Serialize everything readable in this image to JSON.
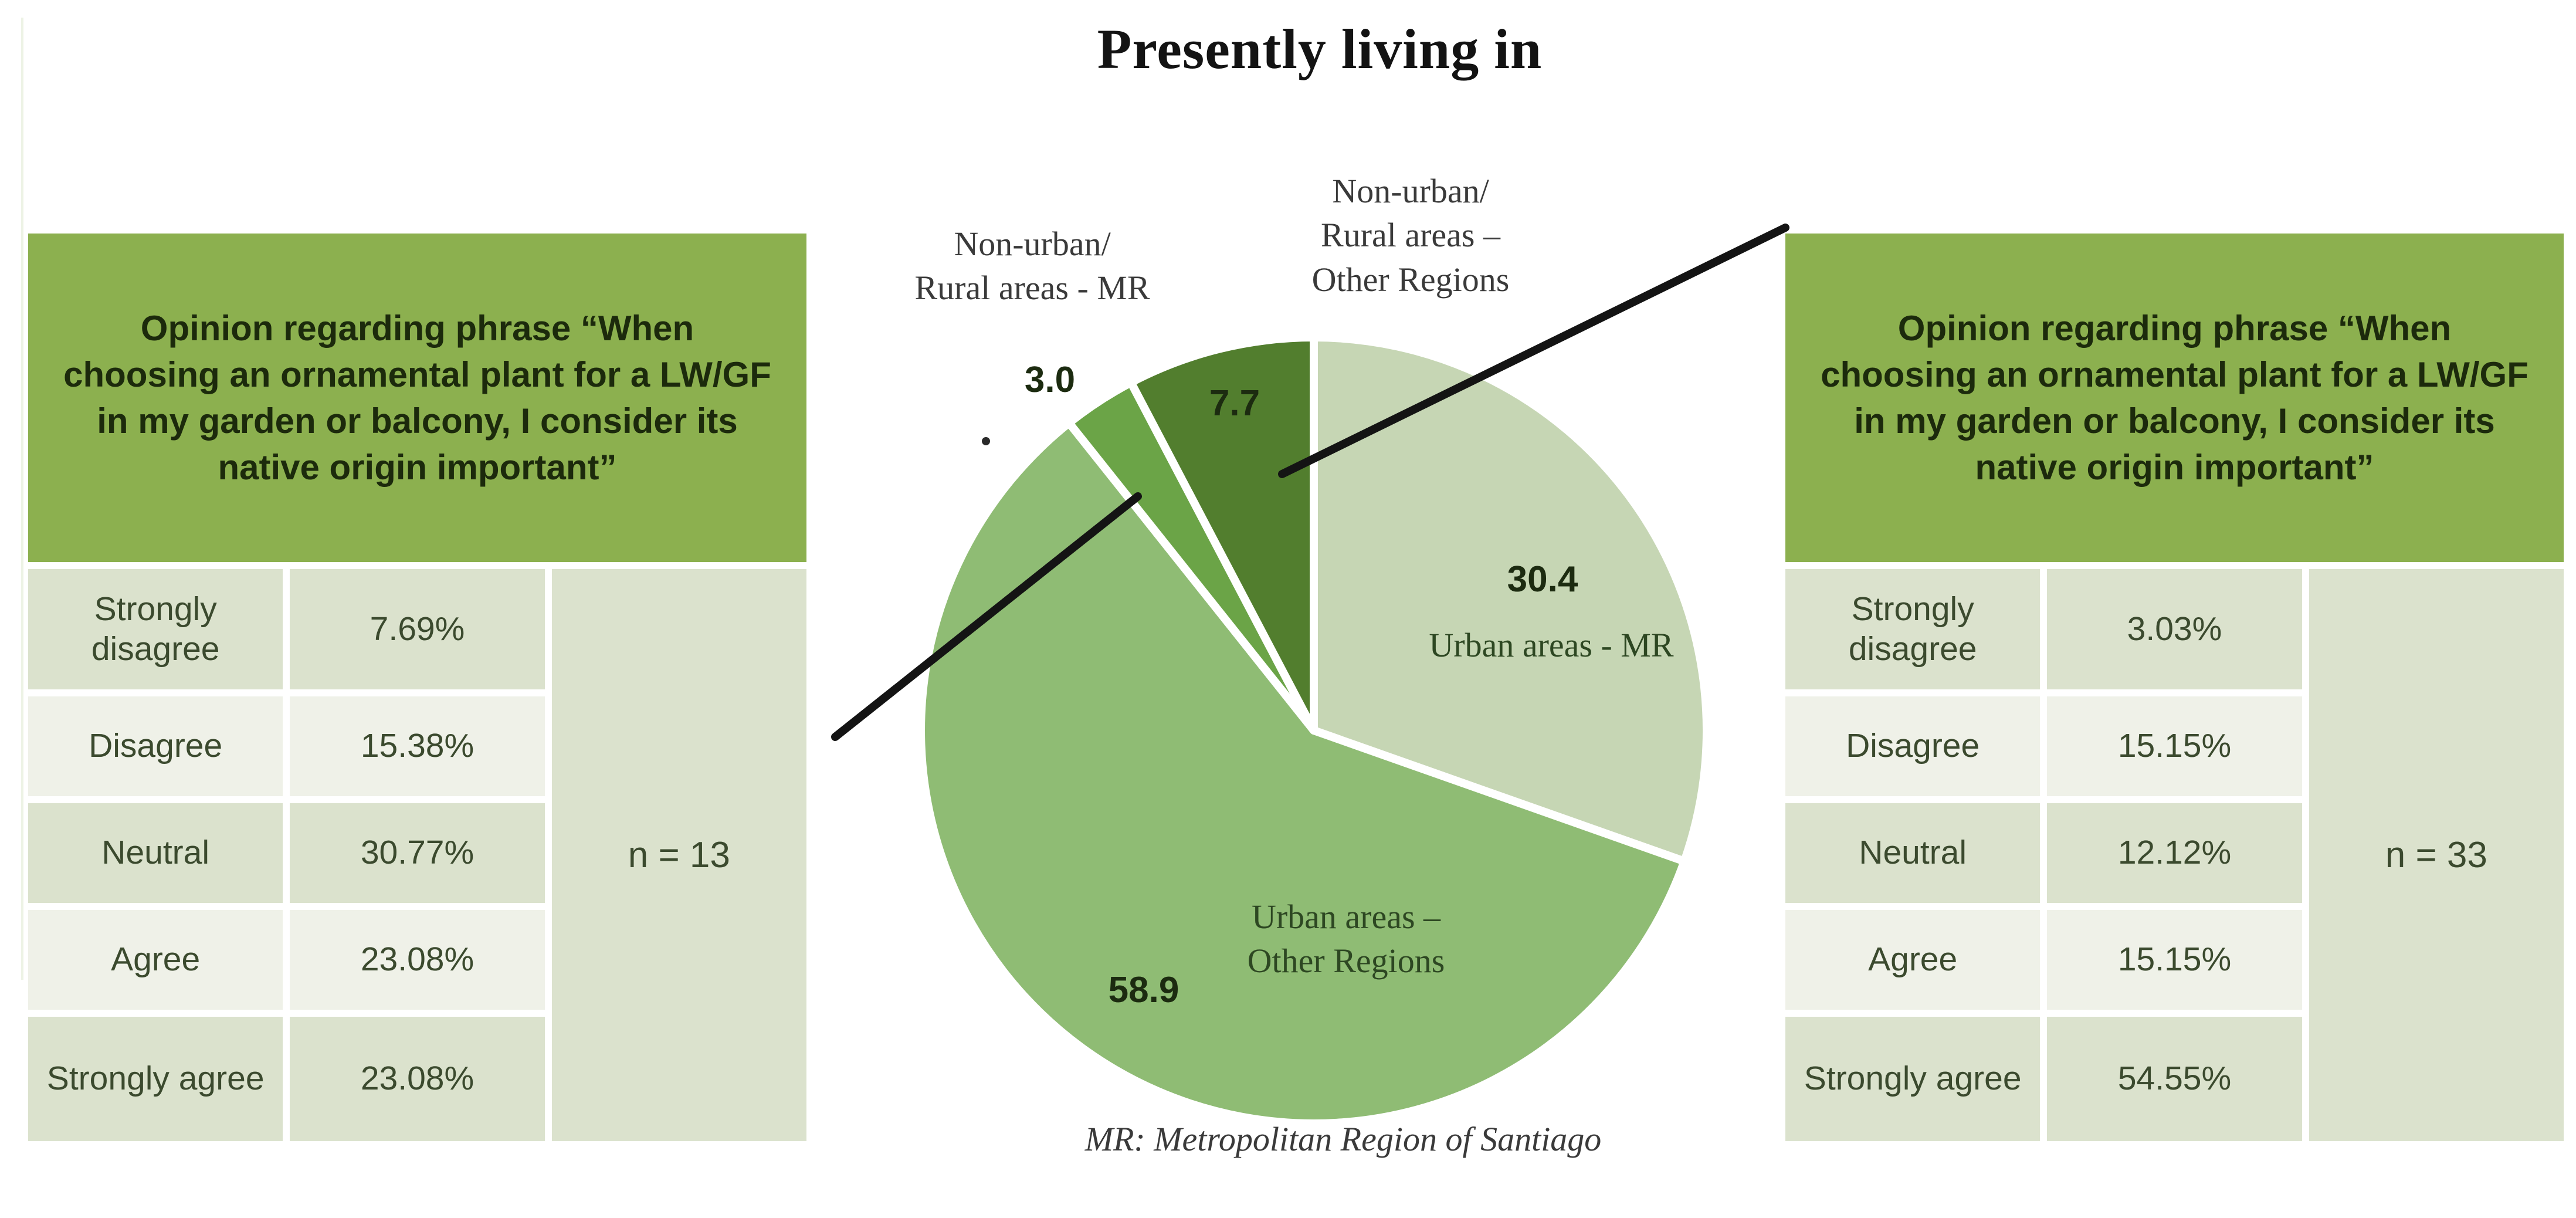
{
  "title": "Presently living in",
  "accent_green": "#8cb04f",
  "table_row_shade_dark": "#dbe2cd",
  "table_row_shade_light": "#eff1e8",
  "left_table": {
    "header": "Opinion regarding phrase “When choosing an ornamental plant for a LW/GF in my garden or balcony, I consider its native origin important”",
    "rows": [
      {
        "label": "Strongly disagree",
        "value": "7.69%"
      },
      {
        "label": "Disagree",
        "value": "15.38%"
      },
      {
        "label": "Neutral",
        "value": "30.77%"
      },
      {
        "label": "Agree",
        "value": "23.08%"
      },
      {
        "label": "Strongly agree",
        "value": "23.08%"
      }
    ],
    "n_label": "n = 13"
  },
  "right_table": {
    "header": "Opinion regarding phrase “When choosing an ornamental plant for a LW/GF in my garden or balcony, I consider its native origin important”",
    "rows": [
      {
        "label": "Strongly disagree",
        "value": "3.03%"
      },
      {
        "label": "Disagree",
        "value": "15.15%"
      },
      {
        "label": "Neutral",
        "value": "12.12%"
      },
      {
        "label": "Agree",
        "value": "15.15%"
      },
      {
        "label": "Strongly agree",
        "value": "54.55%"
      }
    ],
    "n_label": "n = 33"
  },
  "chart_data": {
    "type": "pie",
    "title": "Presently living in",
    "values_shown_as": "percent_of_total",
    "start_angle_deg": 0,
    "direction": "clockwise",
    "slices": [
      {
        "label": "Urban areas - MR",
        "value": 30.4,
        "color": "#c6d6b4"
      },
      {
        "label": "Urban areas – Other Regions",
        "value": 58.9,
        "color": "#8fbc74"
      },
      {
        "label": "Non-urban/ Rural areas - MR",
        "value": 3.0,
        "color": "#6ba447"
      },
      {
        "label": "Non-urban/ Rural areas – Other Regions",
        "value": 7.7,
        "color": "#527e2e"
      }
    ],
    "footnote": "MR: Metropolitan Region of Santiago"
  },
  "pie_labels": {
    "rural_mr": {
      "line1": "Non-urban/",
      "line2": "Rural areas - MR",
      "value": "3.0"
    },
    "rural_other": {
      "line1": "Non-urban/",
      "line2": "Rural areas –",
      "line3": "Other Regions",
      "value": "7.7"
    },
    "urban_mr": {
      "value": "30.4",
      "label": "Urban areas - MR"
    },
    "urban_other": {
      "line1": "Urban areas –",
      "line2": "Other Regions",
      "value": "58.9"
    }
  },
  "footnote": "MR: Metropolitan Region of Santiago"
}
